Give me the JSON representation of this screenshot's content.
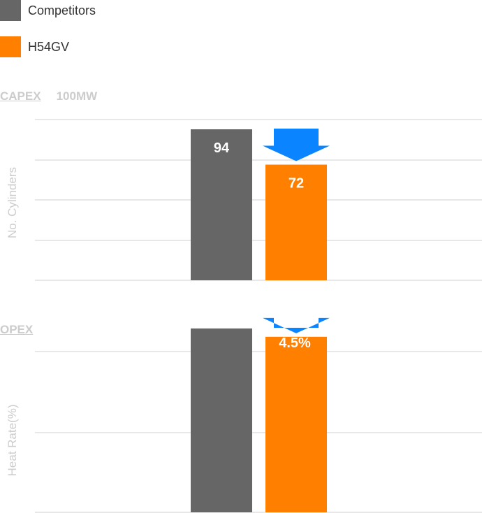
{
  "legend": [
    {
      "label": "Competitors",
      "color": "#666666"
    },
    {
      "label": "H54GV",
      "color": "#ff8000"
    }
  ],
  "arrow_color": "#0a84ff",
  "chart_data": [
    {
      "type": "bar",
      "title": "CAPEX",
      "subtitle": "100MW",
      "ylabel": "No. Cylinders",
      "series": [
        {
          "name": "Competitors",
          "values": [
            94
          ]
        },
        {
          "name": "H54GV",
          "values": [
            72
          ]
        }
      ],
      "data_labels": [
        "94",
        "72"
      ],
      "annotation": "",
      "ylim": [
        0,
        94
      ],
      "grid": true,
      "legend": "top-left"
    },
    {
      "type": "bar",
      "title": "OPEX",
      "subtitle": "",
      "ylabel": "Heat Rate(%)",
      "series": [
        {
          "name": "Competitors",
          "values": [
            100
          ]
        },
        {
          "name": "H54GV",
          "values": [
            95.5
          ]
        }
      ],
      "data_labels": [
        "",
        ""
      ],
      "annotation": "4.5%",
      "ylim": [
        0,
        100
      ],
      "grid": true,
      "legend": "top-left"
    }
  ]
}
